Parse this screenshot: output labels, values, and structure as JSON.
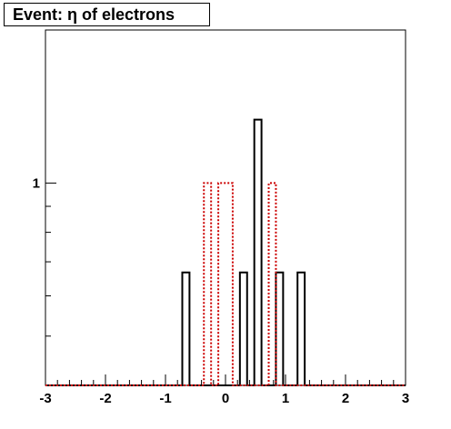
{
  "chart_data": {
    "type": "bar",
    "title": "Event: η of electrons",
    "xlabel": "",
    "ylabel": "",
    "xlim": [
      -3,
      3
    ],
    "xticks": [
      "-3",
      "-2",
      "-1",
      "0",
      "1",
      "2",
      "3"
    ],
    "yticks": [
      "1"
    ],
    "yscale": "log",
    "ylim": [
      0.4,
      2.0
    ],
    "grid": false,
    "series": [
      {
        "style": "solid",
        "color": "#000000",
        "bins": [
          {
            "x0": -0.72,
            "x1": -0.6,
            "y": 0.667
          },
          {
            "x0": 0.24,
            "x1": 0.36,
            "y": 0.667
          },
          {
            "x0": 0.48,
            "x1": 0.6,
            "y": 1.333
          },
          {
            "x0": 0.84,
            "x1": 0.96,
            "y": 0.667
          },
          {
            "x0": 1.2,
            "x1": 1.32,
            "y": 0.667
          }
        ]
      },
      {
        "style": "dotted",
        "color": "#cc0000",
        "bins": [
          {
            "x0": -0.36,
            "x1": -0.24,
            "y": 1.0
          },
          {
            "x0": -0.12,
            "x1": 0.12,
            "y": 1.0
          },
          {
            "x0": 0.72,
            "x1": 0.84,
            "y": 1.0
          }
        ]
      }
    ]
  }
}
